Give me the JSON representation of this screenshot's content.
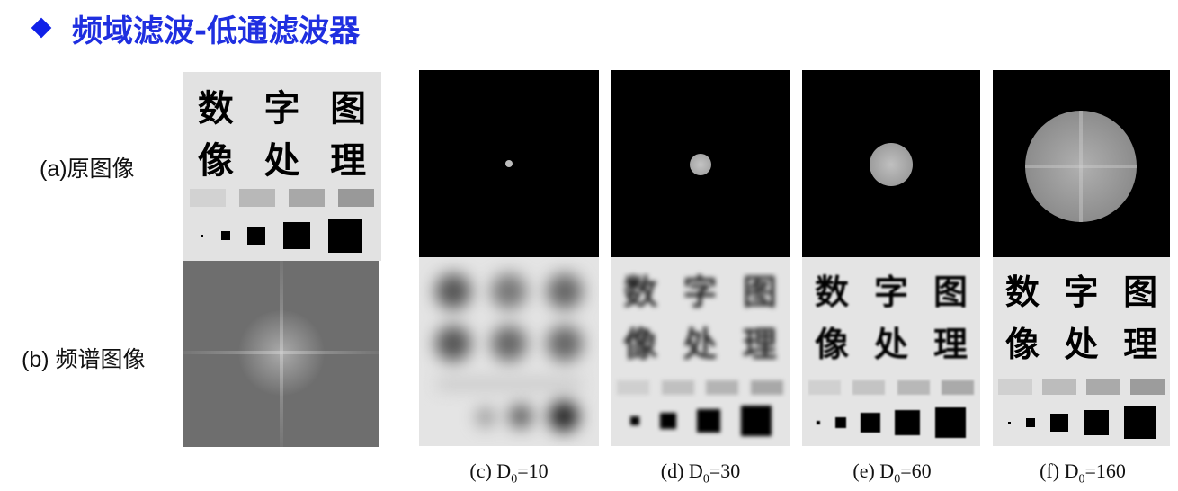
{
  "title": "频域滤波-低通滤波器",
  "labels": {
    "original": "(a)原图像",
    "spectrum": "(b) 频谱图像"
  },
  "glyph_chars": [
    "数",
    "字",
    "图",
    "像",
    "处",
    "理"
  ],
  "captions": [
    {
      "prefix": "(c) D",
      "sub": "0",
      "suffix": "=10"
    },
    {
      "prefix": "(d) D",
      "sub": "0",
      "suffix": "=30"
    },
    {
      "prefix": "(e) D",
      "sub": "0",
      "suffix": "=60"
    },
    {
      "prefix": "(f) D",
      "sub": "0",
      "suffix": "=160"
    }
  ],
  "colors": {
    "title": "#1f2fe0",
    "diamond": "#1020e8",
    "panel_bg": "#e2e2e2",
    "mask_bg": "#000000",
    "spectrum_bg": "#707070"
  }
}
